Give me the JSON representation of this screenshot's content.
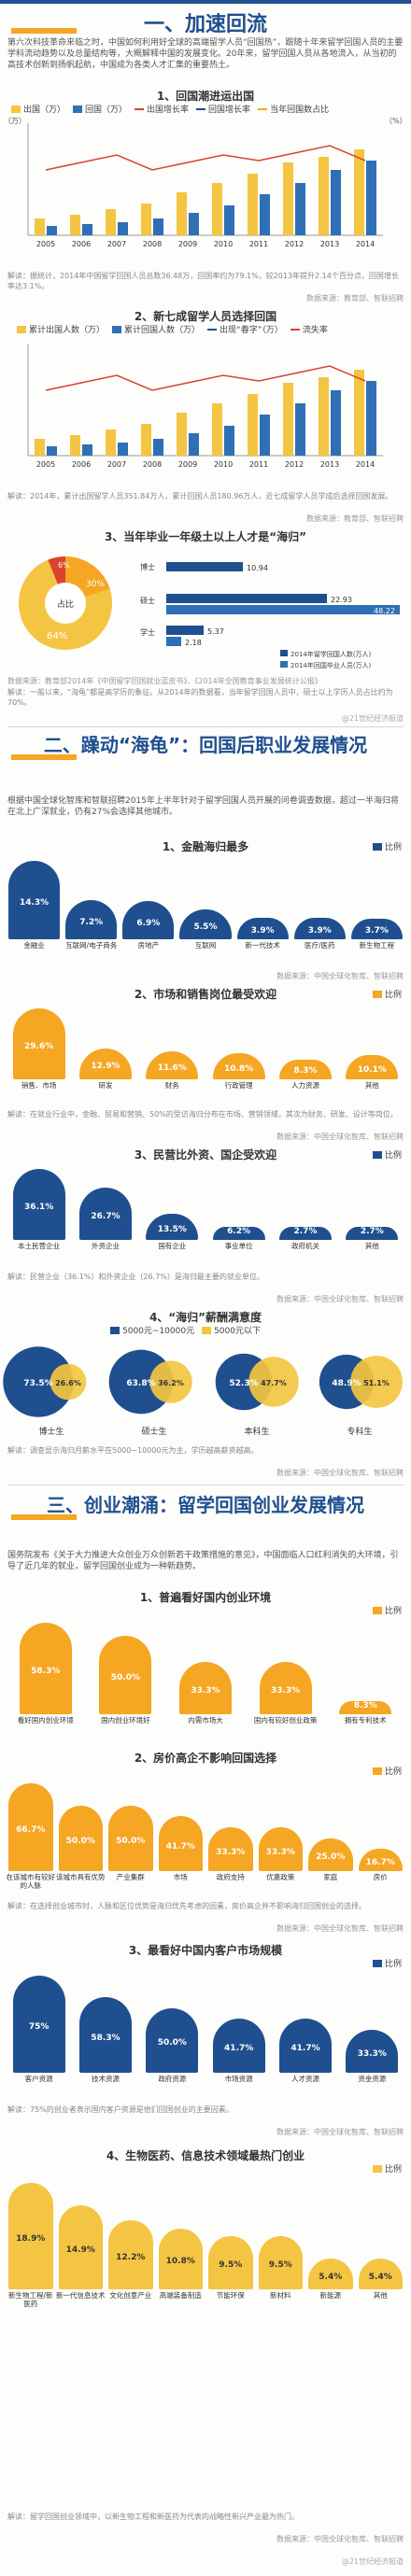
{
  "section1": {
    "title": "一、加速回流",
    "intro": "第六次科技革命来临之时，中国如何利用好全球的高端留学人员“回国热”，跟随十年来留学回国人员的主要学科流动趋势以及总量结构等，大概解释中国的发展变化。20年来，留学回国人员从各地流入，从当初的高技术创新到扬帆起航，中国成为各类人才汇集的重要热土。",
    "chart1": {
      "title": "1、回国潮进运出国",
      "legend": [
        "出国（万）",
        "回国（万）",
        "出国增长率",
        "回国增长率",
        "当年回国数占比"
      ],
      "years": [
        "2005",
        "2006",
        "2007",
        "2008",
        "2009",
        "2010",
        "2011",
        "2012",
        "2013",
        "2014"
      ],
      "left_axis_label": "（万）",
      "right_axis_label": "（%）",
      "note": "解读：据统计，2014年中国留学回国人员总数36.48万，回国率约为79.1%，较2013年提升2.14个百分点，回国增长率达3.1%。",
      "source": "数据来源：教育部、智联招聘"
    },
    "chart2": {
      "title": "2、新七成留学人员选择回国",
      "legend": [
        "累计出国人数（万）",
        "累计回国人数（万）",
        "出现“春字”（万）",
        "流失率"
      ],
      "years": [
        "2005",
        "2006",
        "2007",
        "2008",
        "2009",
        "2010",
        "2011",
        "2012",
        "2013",
        "2014"
      ],
      "note": "解读：2014年，累计出国留学人员351.84万人，累计回国人员180.96万人，近七成留学人员学成后选择回国发展。",
      "source": "数据来源：教育部、智联招聘"
    },
    "chart3": {
      "title": "3、当年毕业一年级土以上人才是“海归”",
      "pie_center": "占比",
      "pie_labels": [
        "6%",
        "30%",
        "64%"
      ],
      "bar_labels": [
        "博士",
        "硕士",
        "学士"
      ],
      "bar_values_text": [
        "10.94",
        "22.93",
        "48.22",
        "5.37",
        "2.18"
      ],
      "legend": [
        "2014年留学回国人数(万人)",
        "2014年回国毕业人员(万人)"
      ],
      "source": "数据来源：教育部2014年《中国留学回国就业蓝皮书》、《2014年全国教育事业发展统计公报》",
      "note": "解读：一般以来，“海龟”都是高学历的象征。从2014年的数据看，当年留学回国人员中，硕士以上学历人员占比约为70%。"
    }
  },
  "section2": {
    "title": "二、躁动“海龟”：回国后职业发展情况",
    "intro": "根据中国全球化智库和智联招聘2015年上半年针对于留学回国人员开展的问卷调查数据，超过一半海归将在北上广深就业，仍有27%会选择其他城市。",
    "chart1": {
      "title": "1、金融海归最多",
      "legend": "比例",
      "items": [
        {
          "label": "金融业",
          "value": "14.3%"
        },
        {
          "label": "互联网/电子商务",
          "value": "7.2%"
        },
        {
          "label": "房地产",
          "value": "6.9%"
        },
        {
          "label": "互联网",
          "value": "5.5%"
        },
        {
          "label": "新一代技术",
          "value": "3.9%"
        },
        {
          "label": "医疗/医药",
          "value": "3.9%"
        },
        {
          "label": "新生物工程",
          "value": "3.7%"
        }
      ],
      "source": "数据来源：中国全球化智库、智联招聘"
    },
    "chart2": {
      "title": "2、市场和销售岗位最受欢迎",
      "legend": "比例",
      "items": [
        {
          "label": "销售、市场",
          "value": "29.6%"
        },
        {
          "label": "研发",
          "value": "12.9%"
        },
        {
          "label": "财务",
          "value": "11.6%"
        },
        {
          "label": "行政管理",
          "value": "10.8%"
        },
        {
          "label": "人力资源",
          "value": "8.3%"
        },
        {
          "label": "其他",
          "value": "10.1%"
        }
      ],
      "note": "解读：在就业行业中，金融、贸易和营销、50%的受访海归分布在市场、营销领域，其次为财务、研发、设计等岗位。",
      "source": "数据来源：中国全球化智库、智联招聘"
    },
    "chart3": {
      "title": "3、民营比外资、国企受欢迎",
      "legend": "比例",
      "items": [
        {
          "label": "本土民营企业",
          "value": "36.1%"
        },
        {
          "label": "外资企业",
          "value": "26.7%"
        },
        {
          "label": "国有企业",
          "value": "13.5%"
        },
        {
          "label": "事业单位",
          "value": "6.2%"
        },
        {
          "label": "政府机关",
          "value": "2.7%"
        },
        {
          "label": "其他",
          "value": "2.7%"
        }
      ],
      "note": "解读：民营企业（36.1%）和外资企业（26.7%）是海归最主要的就业单位。",
      "source": "数据来源：中国全球化智库、智联招聘"
    },
    "chart4": {
      "title": "4、“海归”薪酬满意度",
      "legend": [
        "5000元~10000元",
        "5000元以下"
      ],
      "items": [
        {
          "label": "博士生",
          "v1": "73.5%",
          "v2": "26.6%"
        },
        {
          "label": "硕士生",
          "v1": "63.8%",
          "v2": "36.2%"
        },
        {
          "label": "本科生",
          "v1": "52.3%",
          "v2": "47.7%"
        },
        {
          "label": "专科生",
          "v1": "48.9%",
          "v2": "51.1%"
        }
      ],
      "note": "解读：调查显示海归月薪水平在5000~10000元为主，学历越高薪资越高。",
      "source": "数据来源：中国全球化智库、智联招聘"
    }
  },
  "section3": {
    "title": "三、创业潮涌：留学回国创业发展情况",
    "intro": "国务院发布《关于大力推进大众创业万众创新若干政策措施的意见》，中国面临人口红利消失的大环境，引导了近几年的就业，留学回国创业成为一种新趋势。",
    "chart1": {
      "title": "1、普遍看好国内创业环境",
      "legend": "比例",
      "items": [
        {
          "label": "看好国内创业环境",
          "value": "58.3%"
        },
        {
          "label": "国内创业环境好",
          "value": "50.0%"
        },
        {
          "label": "内需市场大",
          "value": "33.3%"
        },
        {
          "label": "国内有较好创业政策",
          "value": "33.3%"
        },
        {
          "label": "拥有专利技术",
          "value": "8.3%"
        }
      ]
    },
    "chart2": {
      "title": "2、房价高企不影响回国选择",
      "legend": "比例",
      "items": [
        {
          "label": "在该城市有较好的人脉",
          "value": "66.7%"
        },
        {
          "label": "该城市具有优势",
          "value": "50.0%"
        },
        {
          "label": "产业集群",
          "value": "50.0%"
        },
        {
          "label": "市场",
          "value": "41.7%"
        },
        {
          "label": "政府支持",
          "value": "33.3%"
        },
        {
          "label": "优惠政策",
          "value": "33.3%"
        },
        {
          "label": "家庭",
          "value": "25.0%"
        },
        {
          "label": "房价",
          "value": "16.7%"
        }
      ],
      "note": "解读：在选择创业城市时，人脉和区位优势是海归优先考虑的因素，房价高企并不影响海归回国创业的选择。",
      "source": "数据来源：中国全球化智库、智联招聘"
    },
    "chart3": {
      "title": "3、最看好中国内客户市场规模",
      "legend": "比例",
      "items": [
        {
          "label": "客户资源",
          "value": "75%"
        },
        {
          "label": "技术资源",
          "value": "58.3%"
        },
        {
          "label": "政府资源",
          "value": "50.0%"
        },
        {
          "label": "市场资源",
          "value": "41.7%"
        },
        {
          "label": "人才资源",
          "value": "41.7%"
        },
        {
          "label": "资金资源",
          "value": "33.3%"
        }
      ],
      "note": "解读：75%的创业者表示国内客户资源是他们回国创业的主要因素。",
      "source": "数据来源：中国全球化智库、智联招聘"
    },
    "chart4": {
      "title": "4、生物医药、信息技术领域最热门创业",
      "legend": "比例",
      "items": [
        {
          "label": "新生物工程/新医药",
          "value": "18.9%"
        },
        {
          "label": "新一代信息技术",
          "value": "14.9%"
        },
        {
          "label": "文化创意产业",
          "value": "12.2%"
        },
        {
          "label": "高端装备制造",
          "value": "10.8%"
        },
        {
          "label": "节能环保",
          "value": "9.5%"
        },
        {
          "label": "新材料",
          "value": "9.5%"
        },
        {
          "label": "新能源",
          "value": "5.4%"
        },
        {
          "label": "其他",
          "value": "5.4%"
        }
      ],
      "note": "解读：留学回国创业领域中，以新生物工程和新医药为代表的战略性新兴产业最为热门。",
      "source": "数据来源：中国全球化智库、智联招聘"
    }
  },
  "colors": {
    "navy": "#1f4f8f",
    "orange": "#f5a623",
    "red": "#d9432f",
    "blue": "#2f6fb5",
    "yellow": "#f4c542"
  },
  "watermark": "@21世纪经济报道"
}
